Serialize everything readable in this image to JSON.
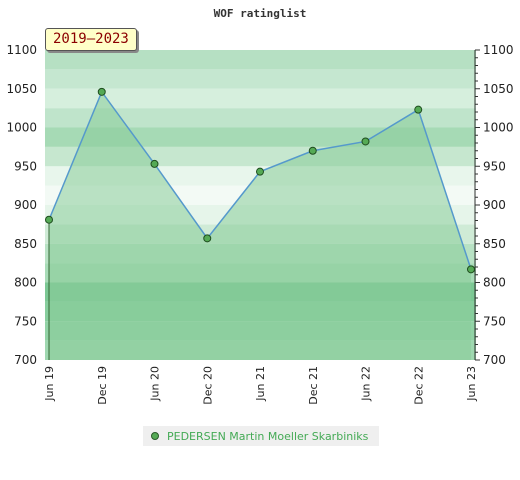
{
  "period_label": "2019–2023",
  "chart_data": {
    "type": "area",
    "title": "WOF ratinglist",
    "xlabel": "",
    "ylabel": "",
    "categories": [
      "Jun 19",
      "Dec 19",
      "Jun 20",
      "Dec 20",
      "Jun 21",
      "Dec 21",
      "Jun 22",
      "Dec 22",
      "Jun 23"
    ],
    "series": [
      {
        "name": "PEDERSEN Martin Moeller Skarbiniks",
        "values": [
          881,
          1046,
          953,
          857,
          943,
          970,
          982,
          1023,
          817
        ]
      }
    ],
    "ylim": [
      700,
      1100
    ],
    "yticks": [
      700,
      750,
      800,
      850,
      900,
      950,
      1000,
      1050,
      1100
    ],
    "y_axis_both_sides": true,
    "grid": true,
    "legend_position": "bottom-center",
    "colors": {
      "line": "#5599cc",
      "fill": "#88cc99",
      "point": "#55aa55"
    }
  }
}
